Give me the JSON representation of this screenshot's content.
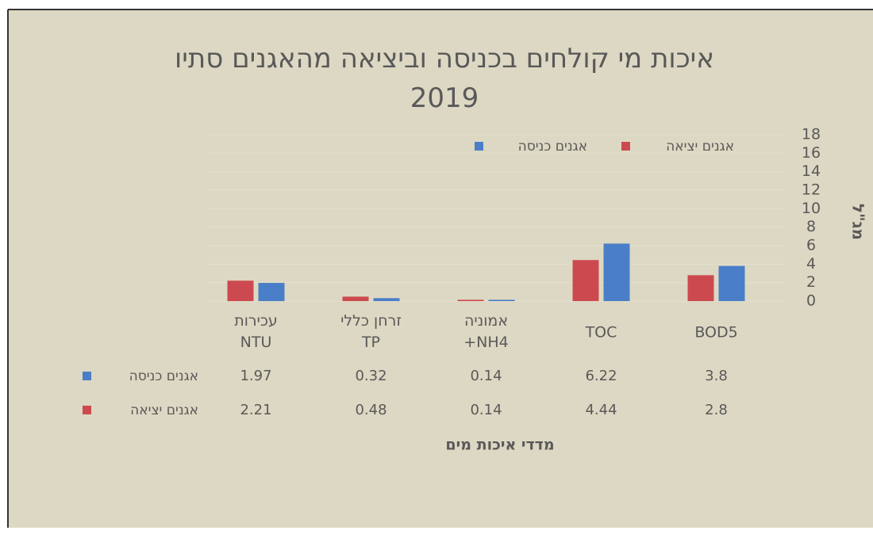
{
  "chart_data": {
    "type": "bar",
    "title": "איכות מי קולחים בכניסה וביציאה מהאגנים סתיו 2019",
    "x_label": "מדדי איכות מים",
    "y_label": "מג\"ל",
    "categories": [
      "BOD5",
      "TOC",
      "אמוניה NH4+",
      "זרחן כללי TP",
      "עכירות NTU"
    ],
    "series": [
      {
        "name": "אגנים יציאה",
        "color": "#cc4a4f",
        "values": [
          2.8,
          4.44,
          0.14,
          0.48,
          2.21
        ]
      },
      {
        "name": "אגנים כניסה",
        "color": "#4a7ec8",
        "values": [
          3.8,
          6.22,
          0.14,
          0.32,
          1.97
        ]
      }
    ],
    "ylim": [
      0,
      18
    ],
    "yticks": [
      0,
      2,
      4,
      6,
      8,
      10,
      12,
      14,
      16,
      18
    ],
    "grid": true,
    "legend": "top",
    "data_table": true
  }
}
